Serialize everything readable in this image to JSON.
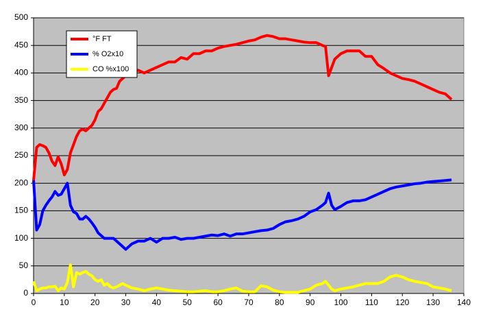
{
  "chart_data": {
    "type": "line",
    "x": [
      0,
      1,
      2,
      3,
      4,
      5,
      6,
      7,
      8,
      9,
      10,
      11,
      12,
      13,
      14,
      15,
      16,
      17,
      18,
      19,
      20,
      21,
      22,
      23,
      24,
      25,
      26,
      27,
      28,
      29,
      30,
      32,
      34,
      36,
      38,
      40,
      42,
      44,
      46,
      48,
      50,
      52,
      54,
      56,
      58,
      60,
      62,
      64,
      66,
      68,
      70,
      72,
      74,
      76,
      78,
      80,
      82,
      84,
      86,
      88,
      90,
      92,
      94,
      95,
      96,
      97,
      98,
      100,
      102,
      104,
      106,
      108,
      110,
      112,
      114,
      116,
      118,
      120,
      122,
      124,
      126,
      128,
      130,
      132,
      134,
      136
    ],
    "series": [
      {
        "name": "°F FT",
        "color": "#ff0000",
        "values": [
          205,
          265,
          270,
          268,
          265,
          255,
          240,
          232,
          248,
          235,
          215,
          225,
          255,
          270,
          285,
          295,
          298,
          295,
          300,
          305,
          315,
          330,
          335,
          345,
          355,
          365,
          370,
          372,
          385,
          390,
          395,
          400,
          405,
          400,
          405,
          410,
          415,
          420,
          420,
          428,
          425,
          435,
          435,
          440,
          440,
          445,
          448,
          450,
          452,
          455,
          458,
          460,
          465,
          468,
          466,
          462,
          462,
          460,
          458,
          456,
          455,
          455,
          450,
          448,
          395,
          410,
          425,
          435,
          440,
          440,
          440,
          430,
          430,
          415,
          408,
          400,
          395,
          390,
          388,
          385,
          380,
          375,
          370,
          365,
          362,
          352
        ]
      },
      {
        "name": "% O2x10",
        "color": "#0000ff",
        "values": [
          205,
          115,
          125,
          150,
          160,
          168,
          175,
          185,
          178,
          180,
          190,
          200,
          160,
          148,
          145,
          135,
          135,
          140,
          135,
          128,
          120,
          110,
          105,
          100,
          100,
          100,
          100,
          95,
          90,
          85,
          80,
          90,
          95,
          95,
          100,
          93,
          100,
          100,
          102,
          98,
          100,
          100,
          102,
          104,
          106,
          105,
          108,
          104,
          108,
          108,
          110,
          112,
          114,
          115,
          118,
          125,
          130,
          132,
          135,
          140,
          148,
          152,
          160,
          165,
          182,
          160,
          152,
          158,
          165,
          168,
          168,
          170,
          175,
          180,
          185,
          190,
          193,
          195,
          197,
          199,
          200,
          202,
          203,
          204,
          205,
          206
        ]
      },
      {
        "name": "CO %x100",
        "color": "#ffff00",
        "values": [
          22,
          5,
          8,
          10,
          10,
          12,
          12,
          13,
          5,
          10,
          8,
          20,
          52,
          12,
          38,
          35,
          38,
          40,
          35,
          32,
          25,
          22,
          25,
          15,
          18,
          12,
          10,
          12,
          15,
          18,
          15,
          10,
          8,
          5,
          8,
          10,
          8,
          6,
          5,
          4,
          3,
          3,
          4,
          5,
          3,
          3,
          5,
          8,
          10,
          4,
          3,
          3,
          14,
          12,
          6,
          3,
          2,
          2,
          2,
          5,
          8,
          15,
          18,
          22,
          15,
          8,
          5,
          8,
          10,
          12,
          15,
          18,
          18,
          18,
          22,
          30,
          33,
          30,
          25,
          22,
          20,
          18,
          12,
          10,
          8,
          5
        ]
      }
    ],
    "xlim": [
      0,
      140
    ],
    "xticks": [
      0,
      10,
      20,
      30,
      40,
      50,
      60,
      70,
      80,
      90,
      100,
      110,
      120,
      130,
      140
    ],
    "ylim": [
      0,
      500
    ],
    "yticks": [
      0,
      50,
      100,
      150,
      200,
      250,
      300,
      350,
      400,
      450,
      500
    ],
    "grid": true,
    "legend": "top-left",
    "plot_background": "#c0c0c0"
  }
}
